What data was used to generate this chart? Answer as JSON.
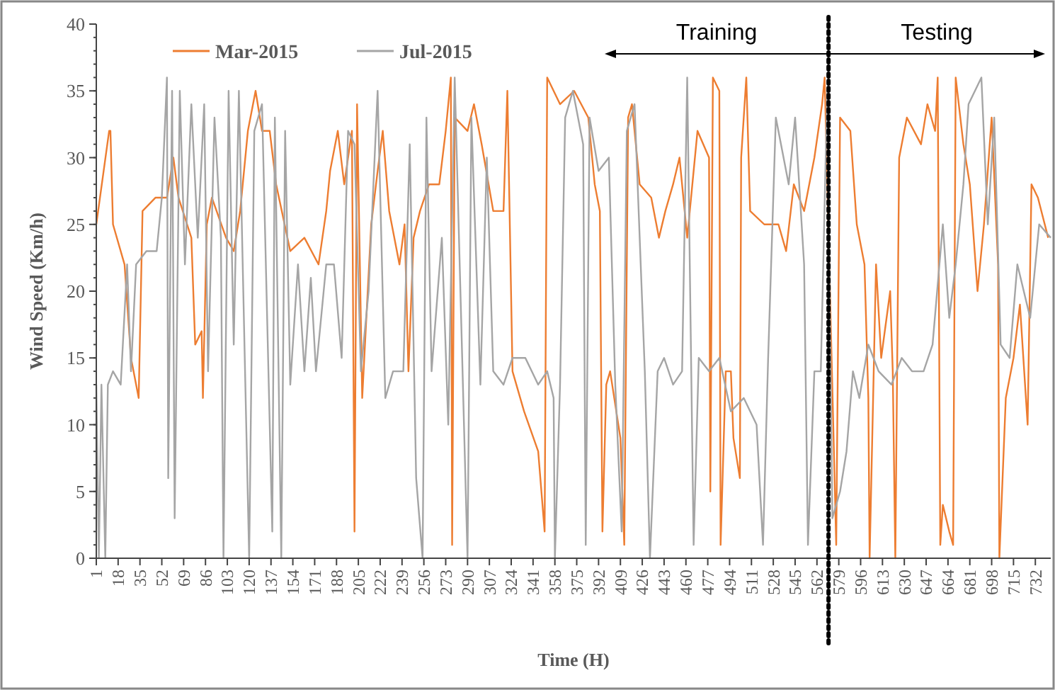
{
  "chart_data": {
    "type": "line",
    "xlabel": "Time (H)",
    "ylabel": "Wind Speed (Km/h)",
    "xlim": [
      1,
      744
    ],
    "ylim": [
      0,
      40
    ],
    "yticks": [
      0,
      5,
      10,
      15,
      20,
      25,
      30,
      35,
      40
    ],
    "xticks": [
      1,
      18,
      35,
      52,
      69,
      86,
      103,
      120,
      137,
      154,
      171,
      188,
      205,
      222,
      239,
      256,
      273,
      290,
      307,
      324,
      341,
      358,
      375,
      392,
      409,
      426,
      443,
      460,
      477,
      494,
      511,
      528,
      545,
      562,
      579,
      596,
      613,
      630,
      647,
      664,
      681,
      698,
      715,
      732
    ],
    "grid": false,
    "legend": "top left",
    "line_style": "solid",
    "marker": "none",
    "annotations": [
      "Training",
      "Testing"
    ],
    "ref_lines": [
      {
        "axis": "x",
        "value": 571,
        "color": "#000000",
        "line_style": "dotted"
      }
    ],
    "series": [
      {
        "name": "Mar-2015",
        "color": "#ed7d31",
        "x": [
          1,
          11,
          12,
          14,
          23,
          28,
          34,
          37,
          47,
          56,
          61,
          65,
          75,
          78,
          83,
          84,
          87,
          91,
          102,
          108,
          113,
          119,
          125,
          130,
          136,
          141,
          152,
          163,
          174,
          180,
          183,
          189,
          194,
          200,
          202,
          204,
          208,
          215,
          220,
          224,
          229,
          237,
          241,
          244,
          248,
          253,
          260,
          268,
          273,
          277,
          278,
          280,
          290,
          295,
          301,
          310,
          318,
          321,
          325,
          334,
          345,
          350,
          352,
          362,
          373,
          384,
          389,
          393,
          395,
          398,
          401,
          409,
          412,
          415,
          418,
          424,
          433,
          439,
          444,
          450,
          455,
          461,
          469,
          478,
          479,
          481,
          486,
          487,
          491,
          495,
          497,
          502,
          503,
          507,
          510,
          521,
          532,
          538,
          544,
          552,
          560,
          566,
          568,
          577,
          580,
          588,
          593,
          599,
          602,
          603,
          608,
          612,
          619,
          621,
          623,
          626,
          632,
          643,
          648,
          654,
          656,
          658,
          660,
          665,
          668,
          670,
          676,
          681,
          687,
          692,
          698,
          703,
          704,
          709,
          715,
          720,
          726,
          729,
          734,
          742
        ],
        "values": [
          25,
          32,
          32,
          25,
          22,
          15,
          12,
          26,
          27,
          27,
          30,
          27,
          24,
          16,
          17,
          12,
          25,
          27,
          24,
          23,
          26,
          32,
          35,
          32,
          32,
          28,
          23,
          24,
          22,
          26,
          29,
          32,
          28,
          32,
          2,
          34,
          12,
          25,
          29,
          32,
          26,
          22,
          25,
          14,
          24,
          26,
          28,
          28,
          32,
          36,
          1,
          33,
          32,
          34,
          31,
          26,
          26,
          35,
          14,
          11,
          8,
          2,
          36,
          34,
          35,
          33,
          28,
          26,
          2,
          13,
          14,
          9,
          1,
          33,
          34,
          28,
          27,
          24,
          26,
          28,
          30,
          24,
          32,
          30,
          5,
          36,
          35,
          1,
          14,
          14,
          9,
          6,
          30,
          36,
          26,
          25,
          25,
          23,
          28,
          26,
          30,
          34,
          36,
          1,
          33,
          32,
          25,
          22,
          12,
          0,
          22,
          15,
          20,
          14,
          0,
          30,
          33,
          31,
          34,
          32,
          36,
          1,
          4,
          2,
          1,
          36,
          31,
          28,
          20,
          25,
          33,
          22,
          0,
          12,
          15,
          19,
          10,
          28,
          27,
          24
        ]
      },
      {
        "name": "Jul-2015",
        "color": "#a5a5a5",
        "x": [
          1,
          3,
          5,
          8,
          10,
          14,
          20,
          25,
          28,
          32,
          40,
          48,
          52,
          56,
          57,
          60,
          62,
          66,
          70,
          75,
          80,
          85,
          88,
          93,
          98,
          100,
          104,
          108,
          112,
          120,
          124,
          130,
          138,
          140,
          145,
          148,
          152,
          158,
          163,
          168,
          172,
          180,
          186,
          192,
          197,
          202,
          207,
          213,
          220,
          226,
          232,
          240,
          245,
          250,
          255,
          258,
          262,
          270,
          275,
          280,
          290,
          293,
          300,
          305,
          310,
          318,
          325,
          335,
          345,
          352,
          357,
          358,
          362,
          366,
          372,
          380,
          382,
          385,
          392,
          400,
          405,
          410,
          414,
          420,
          428,
          432,
          438,
          443,
          450,
          457,
          461,
          466,
          470,
          478,
          486,
          495,
          505,
          515,
          520,
          524,
          530,
          540,
          545,
          552,
          555,
          560,
          565,
          570,
          574,
          580,
          585,
          590,
          595,
          602,
          610,
          620,
          628,
          636,
          645,
          652,
          660,
          665,
          670,
          676,
          680,
          690,
          695,
          700,
          705,
          712,
          718,
          723,
          728,
          735,
          744
        ],
        "values": [
          13,
          0,
          13,
          0,
          13,
          14,
          13,
          22,
          14,
          22,
          23,
          23,
          27,
          36,
          6,
          35,
          3,
          35,
          22,
          34,
          24,
          34,
          14,
          33,
          24,
          0,
          35,
          16,
          35,
          0,
          32,
          34,
          2,
          33,
          0,
          32,
          13,
          22,
          14,
          21,
          14,
          22,
          22,
          15,
          32,
          31,
          14,
          20,
          35,
          12,
          14,
          14,
          31,
          6,
          0,
          33,
          14,
          24,
          10,
          36,
          0,
          33,
          13,
          30,
          14,
          13,
          15,
          15,
          13,
          14,
          12,
          0,
          13,
          33,
          35,
          31,
          1,
          33,
          29,
          30,
          13,
          2,
          32,
          34,
          14,
          0,
          14,
          15,
          13,
          14,
          36,
          1,
          15,
          14,
          15,
          11,
          12,
          10,
          1,
          15,
          33,
          28,
          33,
          22,
          1,
          14,
          14,
          35,
          3,
          5,
          8,
          14,
          12,
          16,
          14,
          13,
          15,
          14,
          14,
          16,
          25,
          18,
          22,
          28,
          34,
          36,
          25,
          33,
          16,
          15,
          22,
          20,
          18,
          25,
          24
        ]
      }
    ]
  }
}
